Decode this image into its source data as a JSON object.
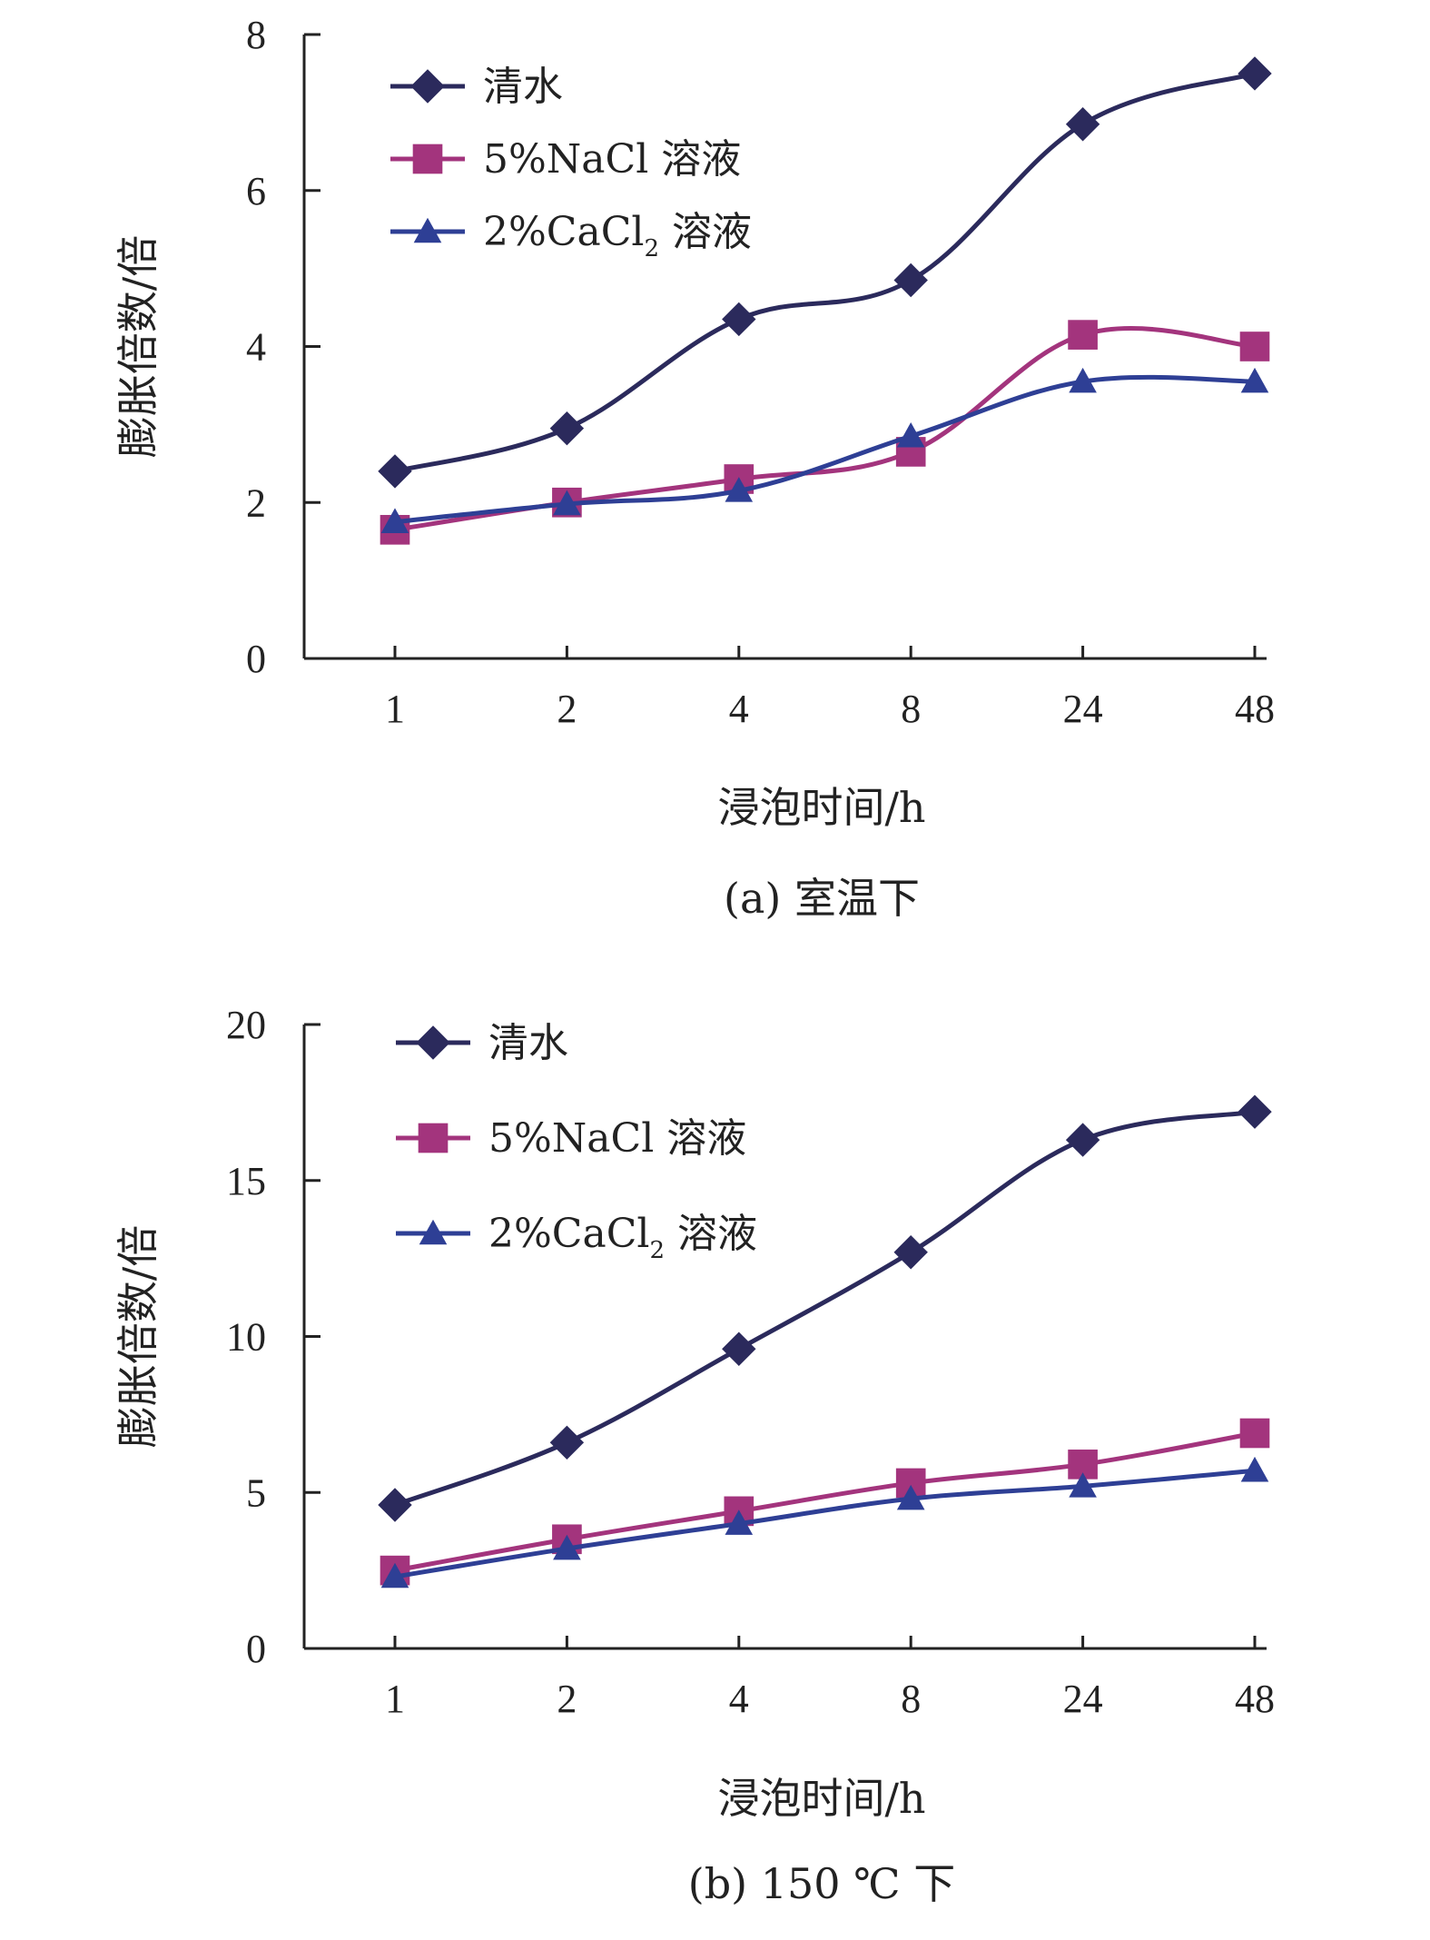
{
  "chart_data": [
    {
      "type": "line",
      "caption": "(a) 室温下",
      "xlabel": "浸泡时间/h",
      "ylabel": "膨胀倍数/倍",
      "categories": [
        "1",
        "2",
        "4",
        "8",
        "24",
        "48"
      ],
      "ylim": [
        0,
        8
      ],
      "yticks": [
        0,
        2,
        4,
        6,
        8
      ],
      "legend_position": "top-left",
      "grid": false,
      "series": [
        {
          "name": "清水",
          "marker": "diamond",
          "color": "#2b2a5c",
          "values": [
            2.4,
            2.95,
            4.35,
            4.85,
            6.85,
            7.5
          ]
        },
        {
          "name": "5%NaCl 溶液",
          "marker": "square",
          "color": "#a3347d",
          "values": [
            1.65,
            2.0,
            2.3,
            2.65,
            4.15,
            4.0
          ]
        },
        {
          "name": "2%CaCl₂ 溶液",
          "marker": "triangle",
          "color": "#2e3f95",
          "values": [
            1.75,
            1.98,
            2.15,
            2.85,
            3.55,
            3.55
          ]
        }
      ]
    },
    {
      "type": "line",
      "caption": "(b) 150 ℃ 下",
      "xlabel": "浸泡时间/h",
      "ylabel": "膨胀倍数/倍",
      "categories": [
        "1",
        "2",
        "4",
        "8",
        "24",
        "48"
      ],
      "ylim": [
        0,
        20
      ],
      "yticks": [
        0,
        5,
        10,
        15,
        20
      ],
      "legend_position": "top-left",
      "grid": false,
      "series": [
        {
          "name": "清水",
          "marker": "diamond",
          "color": "#2b2a5c",
          "values": [
            4.6,
            6.6,
            9.6,
            12.7,
            16.3,
            17.2
          ]
        },
        {
          "name": "5%NaCl 溶液",
          "marker": "square",
          "color": "#a3347d",
          "values": [
            2.5,
            3.5,
            4.4,
            5.3,
            5.9,
            6.9
          ]
        },
        {
          "name": "2%CaCl₂ 溶液",
          "marker": "triangle",
          "color": "#2e3f95",
          "values": [
            2.3,
            3.2,
            4.0,
            4.8,
            5.2,
            5.7
          ]
        }
      ]
    }
  ]
}
